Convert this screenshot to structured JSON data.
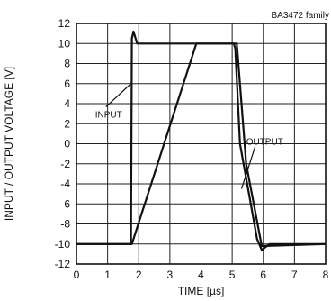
{
  "chart_data": {
    "type": "line",
    "title": "BA3472 family",
    "xlabel": "TIME [µs]",
    "ylabel": "INPUT / OUTPUT VOLTAGE [V]",
    "xlim": [
      0,
      8
    ],
    "ylim": [
      -12,
      12
    ],
    "grid": true,
    "x_ticks": [
      "0",
      "1",
      "2",
      "3",
      "4",
      "5",
      "6",
      "7",
      "8"
    ],
    "y_ticks": [
      "-12",
      "-10",
      "-8",
      "-6",
      "-4",
      "-2",
      "0",
      "2",
      "4",
      "6",
      "8",
      "10",
      "12"
    ],
    "series": [
      {
        "name": "INPUT",
        "x": [
          0,
          1.75,
          1.78,
          1.83,
          1.95,
          5.05,
          5.1,
          5.25,
          5.8,
          5.95,
          6.2,
          8
        ],
        "y": [
          -10,
          -10,
          10.5,
          11.2,
          10.0,
          10.0,
          9.5,
          0,
          -9.5,
          -10.6,
          -10.0,
          -10
        ]
      },
      {
        "name": "OUTPUT",
        "x": [
          0,
          1.78,
          3.85,
          5.15,
          5.45,
          5.95,
          8
        ],
        "y": [
          -10,
          -10,
          10.0,
          10.0,
          -2,
          -10.2,
          -10
        ]
      }
    ],
    "annotations": [
      {
        "text": "INPUT",
        "x": 0.6,
        "y": 2.6,
        "arrow_to": [
          1.75,
          6.0
        ]
      },
      {
        "text": "OUTPUT",
        "x": 5.45,
        "y": -0.1,
        "arrow_to": [
          5.3,
          -4.5
        ]
      }
    ]
  }
}
